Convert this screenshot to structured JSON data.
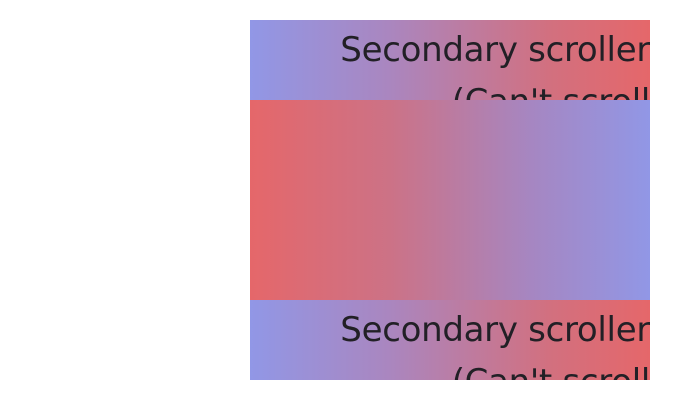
{
  "scrollers": [
    {
      "line1": "Secondary scroller",
      "line2": "(Can't scroll"
    },
    {
      "line1": "Secondary scroller",
      "line2": "(Can't scroll"
    }
  ],
  "colors": {
    "blue": "#9197e6",
    "red": "#e5676a",
    "text": "#222026",
    "background": "#ffffff"
  }
}
